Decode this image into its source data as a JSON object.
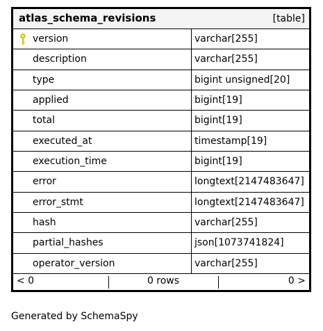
{
  "table": {
    "name": "atlas_schema_revisions",
    "kind": "[table]",
    "columns": [
      {
        "name": "version",
        "type": "varchar[255]",
        "primary_key": true
      },
      {
        "name": "description",
        "type": "varchar[255]"
      },
      {
        "name": "type",
        "type": "bigint unsigned[20]"
      },
      {
        "name": "applied",
        "type": "bigint[19]"
      },
      {
        "name": "total",
        "type": "bigint[19]"
      },
      {
        "name": "executed_at",
        "type": "timestamp[19]"
      },
      {
        "name": "execution_time",
        "type": "bigint[19]"
      },
      {
        "name": "error",
        "type": "longtext[2147483647]"
      },
      {
        "name": "error_stmt",
        "type": "longtext[2147483647]"
      },
      {
        "name": "hash",
        "type": "varchar[255]"
      },
      {
        "name": "partial_hashes",
        "type": "json[1073741824]"
      },
      {
        "name": "operator_version",
        "type": "varchar[255]"
      }
    ],
    "footer": {
      "left": "< 0",
      "middle": "0 rows",
      "right": "0 >"
    }
  },
  "generated_by": "Generated by SchemaSpy",
  "colors": {
    "header_bg": "#f4f4f4",
    "key_icon": "#e8d800",
    "border": "#000000"
  }
}
